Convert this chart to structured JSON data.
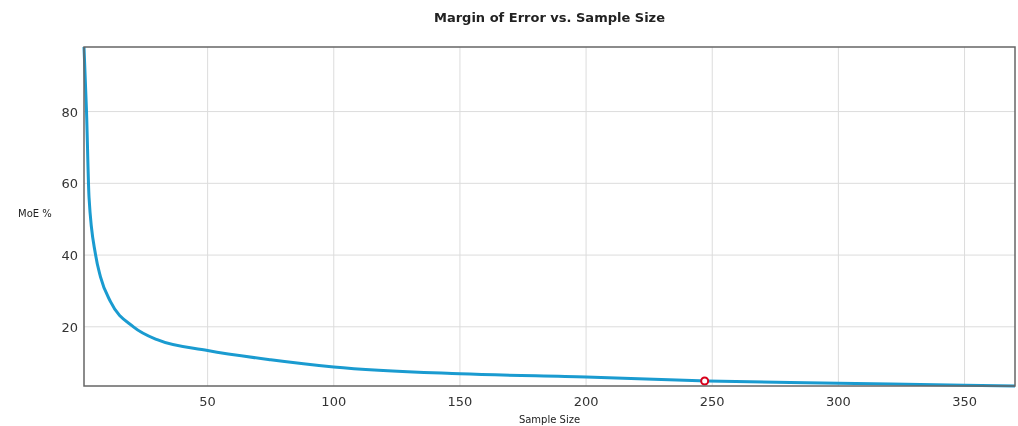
{
  "chart_data": {
    "type": "line",
    "title": "Margin of Error vs. Sample Size",
    "xlabel": "Sample Size",
    "ylabel": "MoE %",
    "xlim": [
      1,
      370
    ],
    "ylim": [
      3.5,
      98
    ],
    "xticks": [
      50,
      100,
      150,
      200,
      250,
      300,
      350
    ],
    "yticks": [
      20,
      40,
      60,
      80
    ],
    "grid": true,
    "series": [
      {
        "color": "#1a9bd0",
        "marker": "none",
        "x": [
          1,
          2,
          3,
          5.6,
          7.5,
          11.5,
          20.6,
          30,
          50,
          75,
          100,
          150,
          200,
          248,
          300,
          350,
          370
        ],
        "values": [
          98,
          80,
          56,
          40,
          34,
          27,
          20,
          16.4,
          13.4,
          10.8,
          8.8,
          6.9,
          6,
          4.9,
          4.3,
          3.7,
          3.5
        ]
      },
      {
        "type": "scatter",
        "color": "#d9001b",
        "marker": "circle",
        "x": [
          247
        ],
        "values": [
          4.9
        ]
      }
    ]
  }
}
